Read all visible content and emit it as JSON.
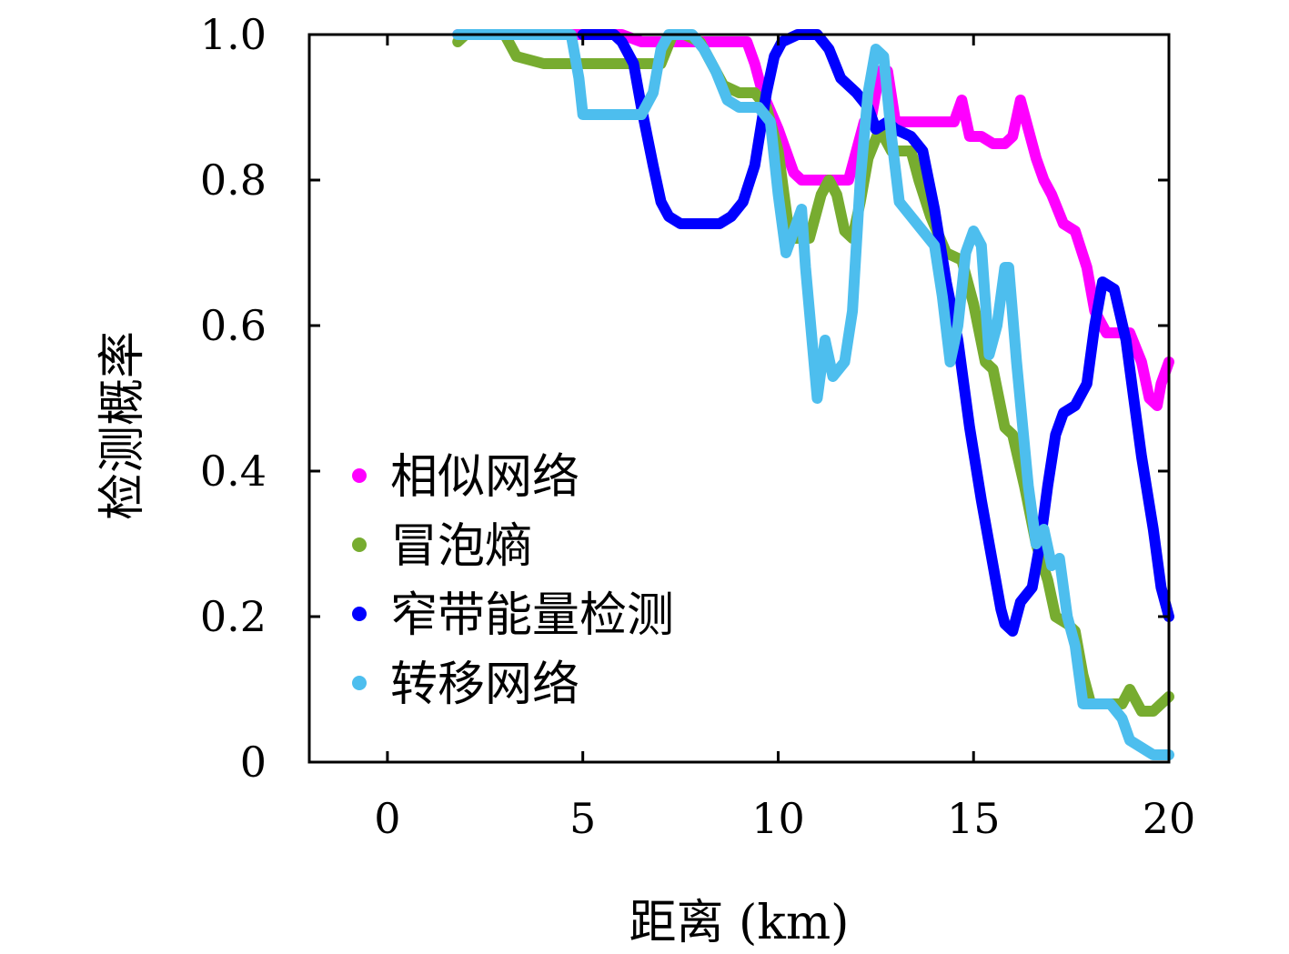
{
  "chart_data": {
    "type": "line",
    "title": "",
    "xlabel": "距离 (km)",
    "ylabel": "检测概率",
    "xlim": [
      -2,
      20
    ],
    "ylim": [
      0,
      1.0
    ],
    "xticks": [
      0,
      5,
      10,
      15,
      20
    ],
    "xtick_labels": [
      "0",
      "5",
      "10",
      "15",
      "20"
    ],
    "yticks": [
      0,
      0.2,
      0.4,
      0.6,
      0.8,
      1.0
    ],
    "ytick_labels": [
      "0",
      "0.2",
      "0.4",
      "0.6",
      "0.8",
      "1.0"
    ],
    "grid": false,
    "legend_position": "lower-left",
    "series": [
      {
        "name": "相似网络",
        "color": "#ff00ff",
        "points": [
          [
            1.8,
            1.0
          ],
          [
            6.0,
            1.0
          ],
          [
            6.5,
            0.99
          ],
          [
            8.0,
            0.99
          ],
          [
            9.2,
            0.99
          ],
          [
            9.4,
            0.96
          ],
          [
            9.6,
            0.92
          ],
          [
            10.0,
            0.87
          ],
          [
            10.4,
            0.81
          ],
          [
            10.6,
            0.8
          ],
          [
            11.2,
            0.8
          ],
          [
            11.8,
            0.8
          ],
          [
            12.0,
            0.84
          ],
          [
            12.2,
            0.88
          ],
          [
            12.4,
            0.89
          ],
          [
            12.6,
            0.95
          ],
          [
            12.8,
            0.95
          ],
          [
            13.0,
            0.88
          ],
          [
            13.5,
            0.88
          ],
          [
            14.0,
            0.88
          ],
          [
            14.5,
            0.88
          ],
          [
            14.7,
            0.91
          ],
          [
            14.9,
            0.86
          ],
          [
            15.2,
            0.86
          ],
          [
            15.5,
            0.85
          ],
          [
            15.8,
            0.85
          ],
          [
            16.0,
            0.86
          ],
          [
            16.2,
            0.91
          ],
          [
            16.4,
            0.87
          ],
          [
            16.6,
            0.83
          ],
          [
            16.8,
            0.8
          ],
          [
            17.0,
            0.78
          ],
          [
            17.3,
            0.74
          ],
          [
            17.6,
            0.73
          ],
          [
            17.9,
            0.68
          ],
          [
            18.1,
            0.62
          ],
          [
            18.4,
            0.59
          ],
          [
            18.7,
            0.59
          ],
          [
            19.0,
            0.59
          ],
          [
            19.3,
            0.55
          ],
          [
            19.5,
            0.5
          ],
          [
            19.7,
            0.49
          ],
          [
            19.8,
            0.52
          ],
          [
            20.0,
            0.55
          ]
        ]
      },
      {
        "name": "冒泡熵",
        "color": "#77ac30",
        "points": [
          [
            1.8,
            0.99
          ],
          [
            2.0,
            1.0
          ],
          [
            3.0,
            1.0
          ],
          [
            3.3,
            0.97
          ],
          [
            4.0,
            0.96
          ],
          [
            5.0,
            0.96
          ],
          [
            6.0,
            0.96
          ],
          [
            6.5,
            0.96
          ],
          [
            7.0,
            0.96
          ],
          [
            7.3,
            1.0
          ],
          [
            7.6,
            1.0
          ],
          [
            8.0,
            0.99
          ],
          [
            8.3,
            0.96
          ],
          [
            8.6,
            0.93
          ],
          [
            9.0,
            0.92
          ],
          [
            9.4,
            0.92
          ],
          [
            9.7,
            0.9
          ],
          [
            10.0,
            0.84
          ],
          [
            10.3,
            0.72
          ],
          [
            10.8,
            0.72
          ],
          [
            11.1,
            0.78
          ],
          [
            11.3,
            0.8
          ],
          [
            11.5,
            0.78
          ],
          [
            11.7,
            0.73
          ],
          [
            11.9,
            0.72
          ],
          [
            12.1,
            0.77
          ],
          [
            12.3,
            0.83
          ],
          [
            12.6,
            0.87
          ],
          [
            12.9,
            0.84
          ],
          [
            13.4,
            0.84
          ],
          [
            13.6,
            0.8
          ],
          [
            13.9,
            0.75
          ],
          [
            14.3,
            0.7
          ],
          [
            14.7,
            0.69
          ],
          [
            15.0,
            0.63
          ],
          [
            15.3,
            0.55
          ],
          [
            15.5,
            0.54
          ],
          [
            15.8,
            0.46
          ],
          [
            16.0,
            0.45
          ],
          [
            16.3,
            0.38
          ],
          [
            16.6,
            0.3
          ],
          [
            16.9,
            0.25
          ],
          [
            17.1,
            0.2
          ],
          [
            17.4,
            0.19
          ],
          [
            17.6,
            0.18
          ],
          [
            17.8,
            0.12
          ],
          [
            18.0,
            0.08
          ],
          [
            18.5,
            0.08
          ],
          [
            18.8,
            0.08
          ],
          [
            19.0,
            0.1
          ],
          [
            19.3,
            0.07
          ],
          [
            19.6,
            0.07
          ],
          [
            19.8,
            0.08
          ],
          [
            20.0,
            0.09
          ]
        ]
      },
      {
        "name": "窄带能量检测",
        "color": "#0000ff",
        "points": [
          [
            5.0,
            1.0
          ],
          [
            5.8,
            1.0
          ],
          [
            6.0,
            0.99
          ],
          [
            6.3,
            0.96
          ],
          [
            6.5,
            0.9
          ],
          [
            6.8,
            0.82
          ],
          [
            7.0,
            0.77
          ],
          [
            7.2,
            0.75
          ],
          [
            7.5,
            0.74
          ],
          [
            8.0,
            0.74
          ],
          [
            8.5,
            0.74
          ],
          [
            8.8,
            0.75
          ],
          [
            9.1,
            0.77
          ],
          [
            9.4,
            0.82
          ],
          [
            9.7,
            0.92
          ],
          [
            9.9,
            0.97
          ],
          [
            10.1,
            0.99
          ],
          [
            10.5,
            1.0
          ],
          [
            11.0,
            1.0
          ],
          [
            11.3,
            0.98
          ],
          [
            11.6,
            0.94
          ],
          [
            12.0,
            0.92
          ],
          [
            12.3,
            0.9
          ],
          [
            12.5,
            0.87
          ],
          [
            12.8,
            0.88
          ],
          [
            13.0,
            0.87
          ],
          [
            13.4,
            0.86
          ],
          [
            13.7,
            0.84
          ],
          [
            14.0,
            0.76
          ],
          [
            14.3,
            0.66
          ],
          [
            14.6,
            0.58
          ],
          [
            14.9,
            0.46
          ],
          [
            15.2,
            0.36
          ],
          [
            15.5,
            0.27
          ],
          [
            15.7,
            0.21
          ],
          [
            15.8,
            0.19
          ],
          [
            16.0,
            0.18
          ],
          [
            16.2,
            0.22
          ],
          [
            16.5,
            0.24
          ],
          [
            16.7,
            0.3
          ],
          [
            16.9,
            0.38
          ],
          [
            17.1,
            0.45
          ],
          [
            17.3,
            0.48
          ],
          [
            17.6,
            0.49
          ],
          [
            17.9,
            0.52
          ],
          [
            18.1,
            0.6
          ],
          [
            18.3,
            0.66
          ],
          [
            18.6,
            0.65
          ],
          [
            18.9,
            0.58
          ],
          [
            19.1,
            0.5
          ],
          [
            19.3,
            0.42
          ],
          [
            19.6,
            0.32
          ],
          [
            19.8,
            0.24
          ],
          [
            20.0,
            0.2
          ]
        ]
      },
      {
        "name": "转移网络",
        "color": "#4dbeee",
        "points": [
          [
            1.8,
            1.0
          ],
          [
            4.7,
            1.0
          ],
          [
            4.9,
            0.94
          ],
          [
            5.0,
            0.89
          ],
          [
            5.5,
            0.89
          ],
          [
            6.0,
            0.89
          ],
          [
            6.5,
            0.89
          ],
          [
            6.8,
            0.92
          ],
          [
            7.0,
            0.98
          ],
          [
            7.2,
            1.0
          ],
          [
            7.5,
            1.0
          ],
          [
            7.8,
            1.0
          ],
          [
            8.1,
            0.98
          ],
          [
            8.4,
            0.95
          ],
          [
            8.7,
            0.91
          ],
          [
            9.0,
            0.9
          ],
          [
            9.5,
            0.9
          ],
          [
            9.8,
            0.88
          ],
          [
            10.0,
            0.78
          ],
          [
            10.2,
            0.7
          ],
          [
            10.4,
            0.73
          ],
          [
            10.6,
            0.76
          ],
          [
            10.7,
            0.68
          ],
          [
            10.9,
            0.56
          ],
          [
            11.0,
            0.5
          ],
          [
            11.2,
            0.58
          ],
          [
            11.4,
            0.53
          ],
          [
            11.7,
            0.55
          ],
          [
            11.9,
            0.62
          ],
          [
            12.1,
            0.8
          ],
          [
            12.3,
            0.92
          ],
          [
            12.5,
            0.98
          ],
          [
            12.7,
            0.97
          ],
          [
            12.9,
            0.86
          ],
          [
            13.1,
            0.77
          ],
          [
            13.4,
            0.75
          ],
          [
            13.7,
            0.73
          ],
          [
            14.0,
            0.71
          ],
          [
            14.2,
            0.64
          ],
          [
            14.4,
            0.55
          ],
          [
            14.6,
            0.6
          ],
          [
            14.8,
            0.7
          ],
          [
            15.0,
            0.73
          ],
          [
            15.2,
            0.71
          ],
          [
            15.4,
            0.56
          ],
          [
            15.6,
            0.6
          ],
          [
            15.8,
            0.68
          ],
          [
            15.9,
            0.68
          ],
          [
            16.1,
            0.55
          ],
          [
            16.4,
            0.38
          ],
          [
            16.6,
            0.3
          ],
          [
            16.8,
            0.32
          ],
          [
            17.0,
            0.27
          ],
          [
            17.2,
            0.28
          ],
          [
            17.4,
            0.2
          ],
          [
            17.6,
            0.16
          ],
          [
            17.8,
            0.08
          ],
          [
            18.0,
            0.08
          ],
          [
            18.5,
            0.08
          ],
          [
            18.8,
            0.06
          ],
          [
            19.0,
            0.03
          ],
          [
            19.3,
            0.02
          ],
          [
            19.6,
            0.01
          ],
          [
            20.0,
            0.01
          ]
        ]
      }
    ]
  }
}
